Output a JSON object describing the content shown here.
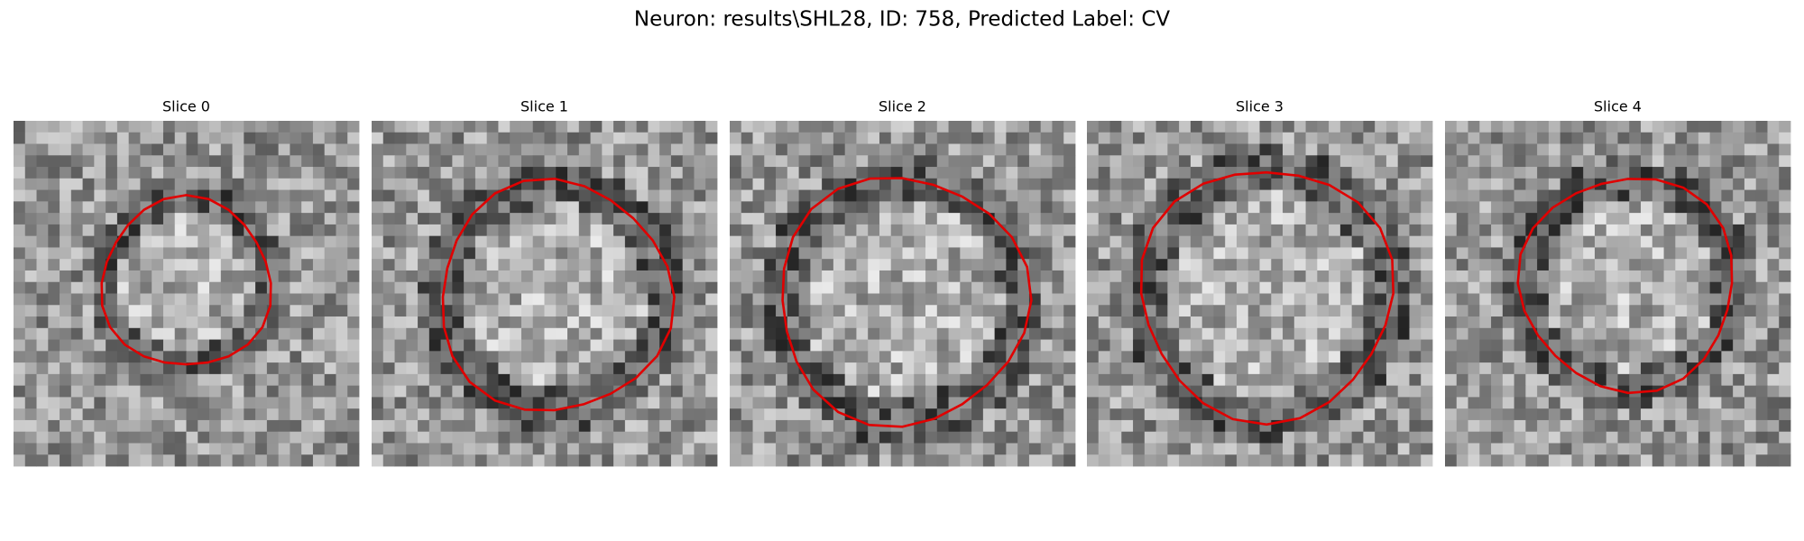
{
  "title": "Neuron: results\\SHL28, ID: 758, Predicted Label: CV",
  "panels": [
    {
      "title": "Slice 0"
    },
    {
      "title": "Slice 1"
    },
    {
      "title": "Slice 2"
    },
    {
      "title": "Slice 3"
    },
    {
      "title": "Slice 4"
    }
  ]
}
